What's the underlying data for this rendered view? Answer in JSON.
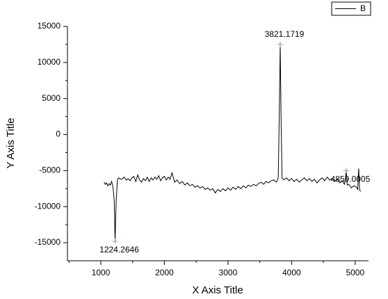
{
  "chart_data": {
    "type": "line",
    "x_label": "X Axis Title",
    "y_label": "Y Axis Title",
    "x": [
      1050,
      1070,
      1090,
      1110,
      1130,
      1150,
      1170,
      1190,
      1210,
      1224.2646,
      1240,
      1260,
      1280,
      1310,
      1340,
      1370,
      1400,
      1430,
      1460,
      1490,
      1520,
      1550,
      1580,
      1610,
      1640,
      1670,
      1700,
      1730,
      1760,
      1790,
      1820,
      1850,
      1880,
      1910,
      1940,
      1970,
      2000,
      2030,
      2060,
      2090,
      2120,
      2160,
      2200,
      2240,
      2280,
      2320,
      2360,
      2400,
      2440,
      2480,
      2520,
      2560,
      2600,
      2640,
      2680,
      2720,
      2760,
      2800,
      2840,
      2880,
      2920,
      2960,
      3000,
      3040,
      3080,
      3120,
      3160,
      3200,
      3240,
      3280,
      3320,
      3360,
      3400,
      3440,
      3480,
      3520,
      3560,
      3600,
      3640,
      3680,
      3720,
      3760,
      3790,
      3805,
      3821.1719,
      3835,
      3850,
      3880,
      3920,
      3960,
      4000,
      4040,
      4080,
      4120,
      4160,
      4200,
      4240,
      4280,
      4320,
      4360,
      4400,
      4440,
      4480,
      4520,
      4560,
      4600,
      4640,
      4680,
      4720,
      4760,
      4800,
      4830,
      4845,
      4859.0005,
      4875,
      4900,
      4940,
      4980,
      5020,
      5040,
      5055,
      5070,
      5085
    ],
    "series": [
      {
        "name": "B",
        "color": "#000000",
        "values": [
          -6600,
          -6900,
          -6700,
          -7100,
          -6800,
          -7000,
          -6500,
          -7200,
          -9000,
          -14800,
          -9500,
          -6300,
          -6000,
          -6200,
          -6100,
          -5900,
          -6300,
          -6100,
          -6400,
          -6000,
          -5800,
          -6500,
          -5600,
          -6300,
          -6600,
          -6100,
          -6400,
          -5900,
          -6500,
          -6000,
          -6300,
          -5900,
          -6200,
          -5700,
          -6400,
          -6000,
          -5800,
          -6300,
          -5900,
          -6200,
          -5300,
          -6600,
          -6300,
          -6800,
          -6500,
          -7000,
          -6700,
          -7100,
          -6900,
          -7300,
          -7100,
          -7400,
          -7200,
          -7600,
          -7400,
          -7700,
          -7500,
          -8100,
          -7600,
          -7900,
          -7500,
          -7800,
          -7400,
          -7700,
          -7300,
          -7600,
          -7200,
          -7500,
          -7100,
          -7400,
          -7000,
          -7200,
          -6900,
          -7100,
          -6800,
          -6600,
          -6900,
          -6500,
          -6700,
          -6400,
          -6300,
          -6600,
          -6000,
          2000,
          12500,
          2000,
          -6000,
          -6300,
          -6000,
          -6400,
          -6100,
          -6500,
          -6200,
          -6600,
          -6300,
          -6000,
          -6400,
          -6100,
          -6500,
          -6200,
          -6700,
          -6300,
          -6000,
          -6400,
          -5900,
          -6300,
          -6100,
          -6500,
          -6200,
          -6700,
          -6400,
          -6900,
          -6200,
          -5000,
          -7000,
          -6900,
          -7400,
          -7100,
          -7300,
          -7600,
          -4700,
          -7700,
          -7900
        ]
      }
    ],
    "annotations": [
      {
        "label": "1224.2646",
        "x": 1224.2646,
        "y": -14800
      },
      {
        "label": "3821.1719",
        "x": 3821.1719,
        "y": 12500
      },
      {
        "label": "4859.0005",
        "x": 4859.0005,
        "y": -5000
      }
    ],
    "marker_color": "#e0805f",
    "xlim": [
      475,
      5210
    ],
    "ylim": [
      -17500,
      15000
    ],
    "xticks": [
      1000,
      2000,
      3000,
      4000,
      5000
    ],
    "xminorticks": [
      500,
      1500,
      2500,
      3500,
      4500
    ],
    "yticks": [
      -15000,
      -10000,
      -5000,
      0,
      5000,
      10000,
      15000
    ],
    "yminorticks": [
      -12500,
      -7500,
      -2500,
      2500,
      7500,
      12500
    ],
    "legend": "upper right",
    "grid": false
  }
}
